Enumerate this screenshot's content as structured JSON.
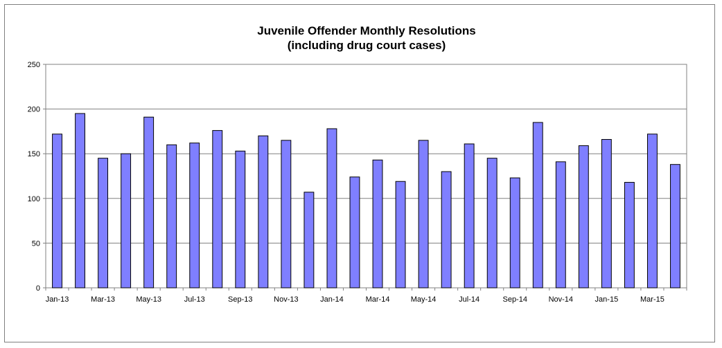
{
  "chart_data": {
    "type": "bar",
    "title": "Juvenile Offender Monthly Resolutions",
    "subtitle": "(including drug court cases)",
    "xlabel": "",
    "ylabel": "",
    "ylim": [
      0,
      250
    ],
    "yticks": [
      0,
      50,
      100,
      150,
      200,
      250
    ],
    "grid": true,
    "legend": "none",
    "bar_color": "#7f7fff",
    "categories": [
      "Jan-13",
      "Feb-13",
      "Mar-13",
      "Apr-13",
      "May-13",
      "Jun-13",
      "Jul-13",
      "Aug-13",
      "Sep-13",
      "Oct-13",
      "Nov-13",
      "Dec-13",
      "Jan-14",
      "Feb-14",
      "Mar-14",
      "Apr-14",
      "May-14",
      "Jun-14",
      "Jul-14",
      "Aug-14",
      "Sep-14",
      "Oct-14",
      "Nov-14",
      "Dec-14",
      "Jan-15",
      "Feb-15",
      "Mar-15",
      "Apr-15"
    ],
    "tick_labels": [
      "Jan-13",
      "",
      "Mar-13",
      "",
      "May-13",
      "",
      "Jul-13",
      "",
      "Sep-13",
      "",
      "Nov-13",
      "",
      "Jan-14",
      "",
      "Mar-14",
      "",
      "May-14",
      "",
      "Jul-14",
      "",
      "Sep-14",
      "",
      "Nov-14",
      "",
      "Jan-15",
      "",
      "Mar-15",
      ""
    ],
    "values": [
      172,
      195,
      145,
      150,
      191,
      160,
      162,
      176,
      153,
      170,
      165,
      107,
      178,
      124,
      143,
      119,
      165,
      130,
      161,
      145,
      123,
      185,
      141,
      159,
      166,
      118,
      172,
      138
    ]
  }
}
